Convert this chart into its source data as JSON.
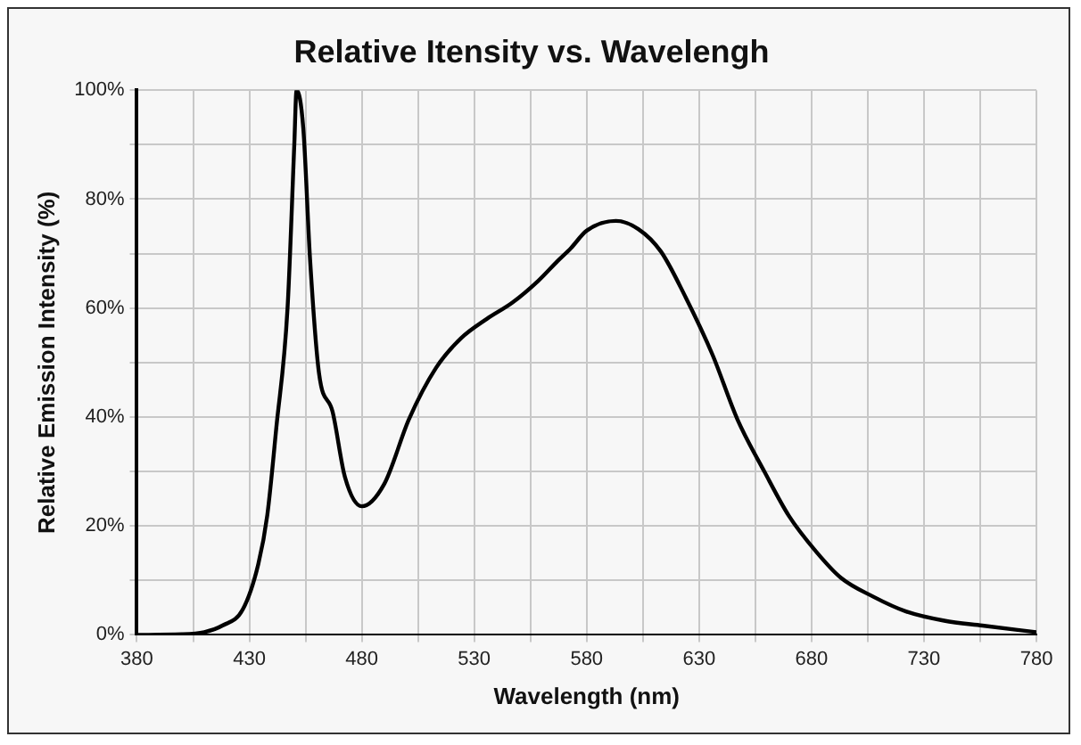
{
  "chart_data": {
    "type": "line",
    "title": "Relative Itensity vs. Wavelengh",
    "xlabel": "Wavelength (nm)",
    "ylabel": "Relative Emission Intensity (%)",
    "series": [
      {
        "color": "#000000",
        "x": [
          380,
          400,
          410,
          418,
          427,
          434,
          438,
          442,
          447,
          450,
          451,
          454,
          457,
          461,
          467,
          472.5,
          480,
          490,
          501,
          513,
          524,
          535.6,
          547,
          558.5,
          567,
          573,
          580,
          593,
          603,
          613,
          624,
          636,
          647,
          659,
          670,
          682,
          693,
          707.5,
          722,
          739,
          756,
          780
        ],
        "values": [
          0,
          0.1,
          0.5,
          1.7,
          4.6,
          13,
          22,
          38,
          60,
          90,
          100,
          93,
          69,
          48,
          41,
          29,
          23.6,
          27.7,
          39.6,
          49,
          54.4,
          58,
          61,
          65,
          68.6,
          71,
          74.2,
          76,
          74.5,
          70.4,
          62,
          51.4,
          39.6,
          30,
          21.8,
          15.3,
          10.5,
          7,
          4.3,
          2.6,
          1.7,
          0.5
        ]
      }
    ],
    "xlim": [
      380,
      780
    ],
    "xticks": [
      380,
      {
        "value": 405,
        "label": null
      },
      430,
      {
        "value": 455,
        "label": null
      },
      480,
      {
        "value": 505,
        "label": null
      },
      530,
      {
        "value": 555,
        "label": null
      },
      580,
      {
        "value": 605,
        "label": null
      },
      630,
      {
        "value": 655,
        "label": null
      },
      680,
      {
        "value": 705,
        "label": null
      },
      730,
      {
        "value": 755,
        "label": null
      },
      780
    ],
    "ylim": [
      0,
      100
    ],
    "yticks": [
      {
        "value": 0,
        "label": "0%"
      },
      {
        "value": 10,
        "label": null
      },
      {
        "value": 20,
        "label": "20%"
      },
      {
        "value": 30,
        "label": null
      },
      {
        "value": 40,
        "label": "40%"
      },
      {
        "value": 50,
        "label": null
      },
      {
        "value": 60,
        "label": "60%"
      },
      {
        "value": 70,
        "label": null
      },
      {
        "value": 80,
        "label": "80%"
      },
      {
        "value": 90,
        "label": null
      },
      {
        "value": 100,
        "label": "100%"
      }
    ],
    "grid": true,
    "legend": false,
    "marker": "none",
    "line_style": "solid"
  }
}
